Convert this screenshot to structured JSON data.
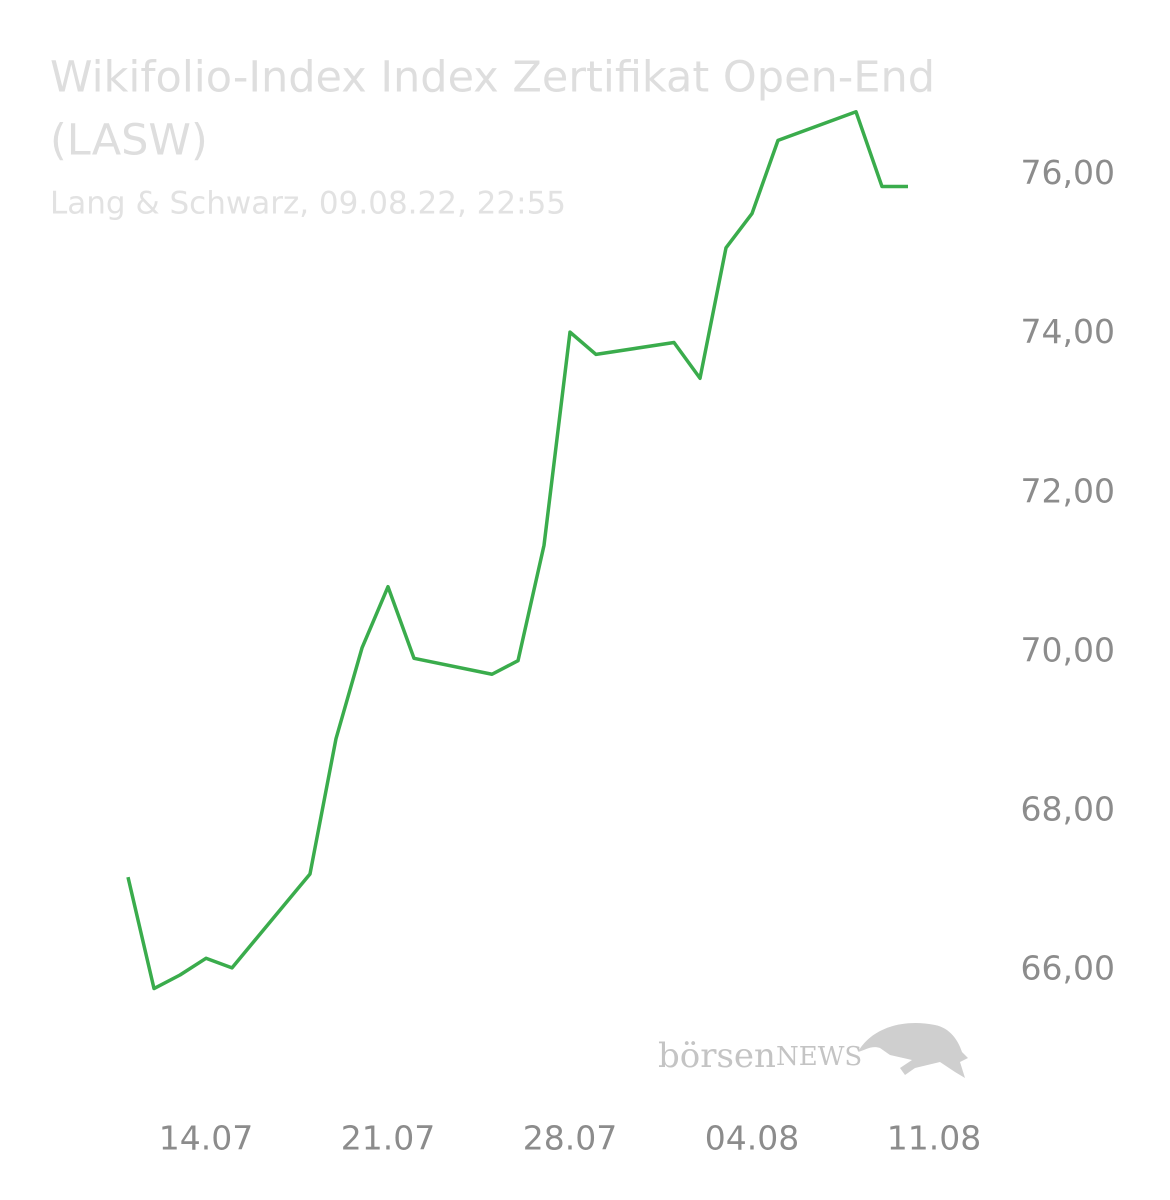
{
  "chart_data": {
    "type": "line",
    "title": [
      "Wikifolio-Index Index Zertifikat Open-End",
      "(LASW)"
    ],
    "subtitle": "Lang & Schwarz, 09.08.22, 22:55",
    "watermark": [
      "börsen",
      "NEWS"
    ],
    "x": [
      "11.07",
      "12.07",
      "13.07",
      "14.07",
      "15.07",
      "18.07",
      "19.07",
      "20.07",
      "21.07",
      "22.07",
      "25.07",
      "26.07",
      "27.07",
      "28.07",
      "29.07",
      "01.08",
      "02.08",
      "03.08",
      "04.08",
      "05.08",
      "08.08",
      "09.08",
      "10.08"
    ],
    "series": [
      {
        "color": "#3aac4c",
        "values": [
          67.17,
          65.77,
          65.94,
          66.15,
          66.03,
          67.21,
          68.91,
          70.05,
          70.82,
          69.92,
          69.72,
          69.89,
          71.34,
          74.02,
          73.74,
          73.89,
          73.44,
          75.08,
          75.51,
          76.43,
          76.79,
          75.85,
          75.85
        ]
      }
    ],
    "xlim": [
      "11.07",
      "11.08"
    ],
    "xticks": [
      "14.07",
      "21.07",
      "28.07",
      "04.08",
      "11.08"
    ],
    "ylim": [
      65.5,
      76.9
    ],
    "yticks": [
      {
        "value": 66,
        "label": "66,00"
      },
      {
        "value": 68,
        "label": "68,00"
      },
      {
        "value": 70,
        "label": "70,00"
      },
      {
        "value": 72,
        "label": "72,00"
      },
      {
        "value": 74,
        "label": "74,00"
      },
      {
        "value": 76,
        "label": "76,00"
      }
    ],
    "grid": false
  }
}
